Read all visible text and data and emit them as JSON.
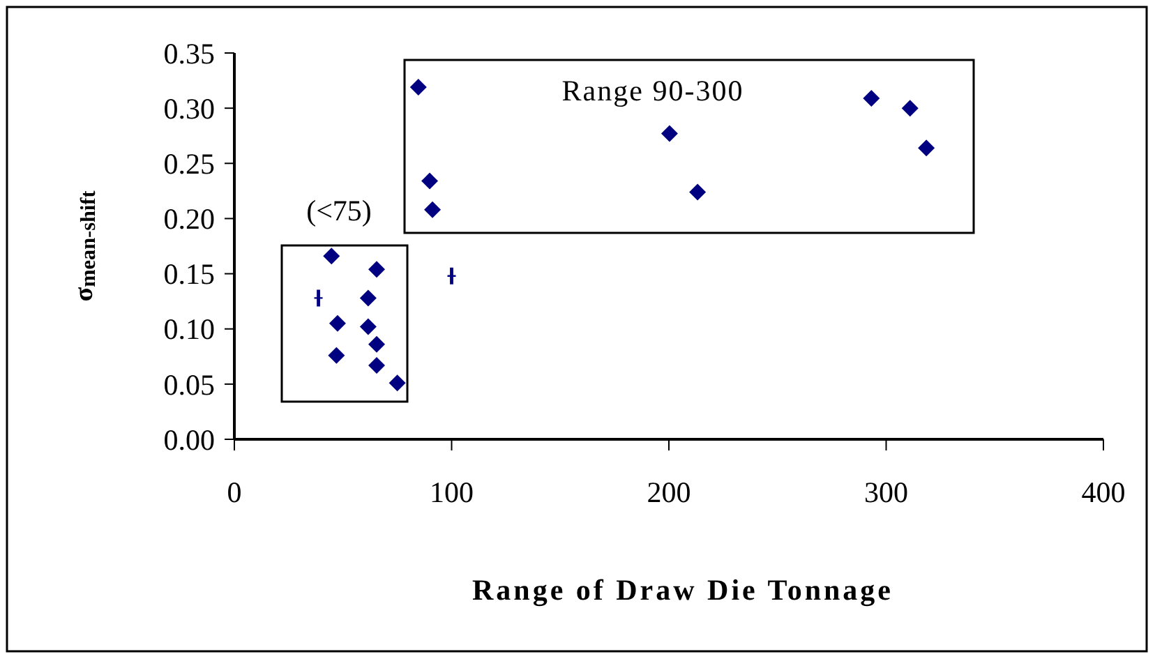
{
  "chart_data": {
    "type": "scatter",
    "xlabel": "Range of Draw Die Tonnage",
    "ylabel": "σ$_{mean-shift}$",
    "xlim": [
      0,
      400
    ],
    "xticks": [
      0,
      100,
      200,
      300,
      400
    ],
    "ylim": [
      0,
      0.35
    ],
    "yticks": [
      {
        "value": 0,
        "label": "0.00"
      },
      {
        "value": 0.05,
        "label": "0.05"
      },
      {
        "value": 0.1,
        "label": "0.10"
      },
      {
        "value": 0.15,
        "label": "0.15"
      },
      {
        "value": 0.2,
        "label": "0.20"
      },
      {
        "value": 0.25,
        "label": "0.25"
      },
      {
        "value": 0.3,
        "label": "0.30"
      },
      {
        "value": 0.35,
        "label": "0.35"
      }
    ],
    "grid": false,
    "series": [
      {
        "color": "#000080",
        "marker": "diamond",
        "x": [
          44.7,
          65.5,
          61.6,
          47.5,
          61.6,
          65.5,
          47,
          65.5,
          75,
          84.7,
          89.9,
          91.2,
          200.3,
          213.2,
          293.2,
          311,
          318.5
        ],
        "values": [
          0.166,
          0.154,
          0.128,
          0.105,
          0.102,
          0.086,
          0.076,
          0.067,
          0.051,
          0.319,
          0.234,
          0.208,
          0.277,
          0.224,
          0.309,
          0.3,
          0.264
        ]
      },
      {
        "color": "#000080",
        "marker": "cross",
        "x": [
          38.7,
          100
        ],
        "values": [
          0.128,
          0.148
        ]
      }
    ],
    "annotations": [
      "Range 90-300",
      "(<75)"
    ]
  }
}
